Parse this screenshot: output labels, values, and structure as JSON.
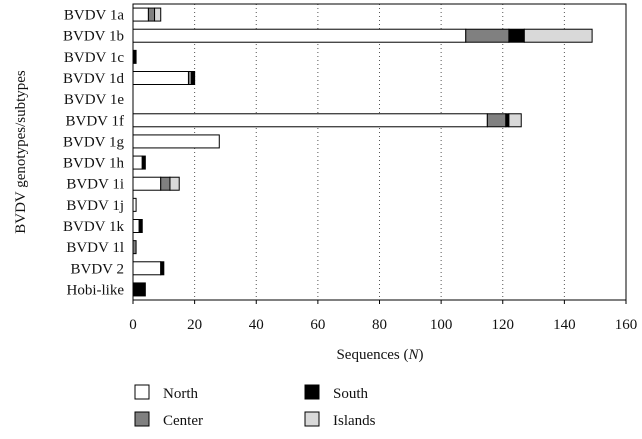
{
  "chart_data": {
    "type": "bar",
    "orientation": "horizontal",
    "stacked": true,
    "categories": [
      "BVDV 1a",
      "BVDV 1b",
      "BVDV 1c",
      "BVDV 1d",
      "BVDV 1e",
      "BVDV 1f",
      "BVDV 1g",
      "BVDV 1h",
      "BVDV 1i",
      "BVDV 1j",
      "BVDV 1k",
      "BVDV 1l",
      "BVDV 2",
      "Hobi-like"
    ],
    "series": [
      {
        "name": "North",
        "color": "#ffffff",
        "values": [
          5,
          108,
          0,
          18,
          0,
          115,
          28,
          3,
          9,
          1,
          2,
          0,
          9,
          0
        ]
      },
      {
        "name": "Center",
        "color": "#808080",
        "values": [
          2,
          14,
          0,
          1,
          0,
          6,
          0,
          0,
          3,
          0,
          0,
          1,
          0,
          0
        ]
      },
      {
        "name": "South",
        "color": "#000000",
        "values": [
          0,
          5,
          1,
          1,
          0,
          1,
          0,
          1,
          0,
          0,
          1,
          0,
          1,
          4
        ]
      },
      {
        "name": "Islands",
        "color": "#d9d9d9",
        "values": [
          2,
          22,
          0,
          0,
          0,
          4,
          0,
          0,
          3,
          0,
          0,
          0,
          0,
          0
        ]
      }
    ],
    "xlabel_prefix": "Sequences (",
    "xlabel_var": "N",
    "xlabel_suffix": ")",
    "ylabel": "BVDV genotypes/subtypes",
    "xlim": [
      0,
      160
    ],
    "xticks": [
      0,
      20,
      40,
      60,
      80,
      100,
      120,
      140,
      160
    ],
    "grid": "vertical-dotted",
    "legend_position": "bottom"
  }
}
